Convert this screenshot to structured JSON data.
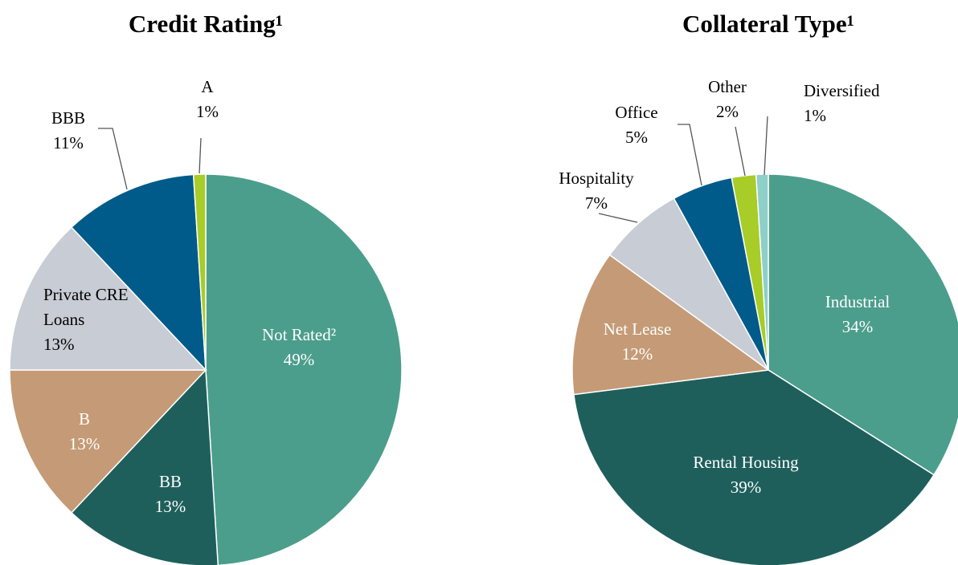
{
  "chart_data": [
    {
      "type": "pie",
      "title": "Credit Rating¹",
      "categories": [
        "Not Rated²",
        "BB",
        "B",
        "Private CRE Loans",
        "BBB",
        "A"
      ],
      "values": [
        49,
        13,
        13,
        13,
        11,
        1
      ],
      "value_labels": [
        "49%",
        "13%",
        "13%",
        "13%",
        "11%",
        "1%"
      ],
      "colors": [
        "#4b9e8c",
        "#1e5f5c",
        "#c49b76",
        "#c8ccd4",
        "#005b8a",
        "#a8cc28"
      ]
    },
    {
      "type": "pie",
      "title": "Collateral Type¹",
      "categories": [
        "Industrial",
        "Rental Housing",
        "Net Lease",
        "Hospitality",
        "Office",
        "Other",
        "Diversified"
      ],
      "values": [
        34,
        39,
        12,
        7,
        5,
        2,
        1
      ],
      "value_labels": [
        "34%",
        "39%",
        "12%",
        "7%",
        "5%",
        "2%",
        "1%"
      ],
      "colors": [
        "#4b9e8c",
        "#1e5f5c",
        "#c49b76",
        "#c8ccd4",
        "#005b8a",
        "#a8cc28",
        "#8ecfc9"
      ]
    }
  ]
}
